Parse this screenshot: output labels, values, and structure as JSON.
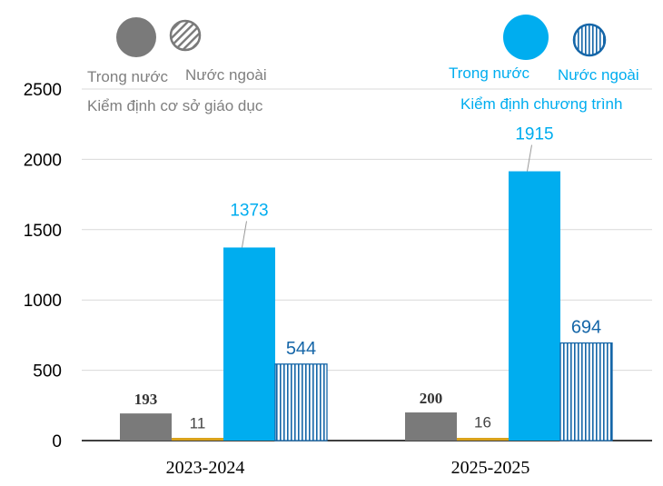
{
  "colors": {
    "domestic_school": "#7a7a7a",
    "foreign_school": "#d9a21b",
    "domestic_program": "#00adef",
    "foreign_program": "#1566a8",
    "legend_gray_text": "#7f7f7f",
    "grid": "#d9d9d9",
    "axis_text": "#000000"
  },
  "legend": {
    "left": {
      "domestic_label": "Trong nước",
      "foreign_label": "Nước ngoài",
      "group_label": "Kiểm định cơ sở giáo dục",
      "domestic_icon": "filled-circle-icon",
      "foreign_icon": "hatched-circle-icon"
    },
    "right": {
      "domestic_label": "Trong nước",
      "foreign_label": "Nước ngoài",
      "group_label": "Kiểm định chương trình",
      "domestic_icon": "filled-circle-icon",
      "foreign_icon": "striped-circle-icon"
    }
  },
  "chart_data": {
    "type": "bar",
    "categories": [
      "2023-2024",
      "2025-2025"
    ],
    "series": [
      {
        "name": "Kiểm định cơ sở giáo dục - Trong nước",
        "values": [
          193,
          200
        ],
        "labels": [
          "193",
          "200"
        ]
      },
      {
        "name": "Kiểm định cơ sở giáo dục - Nước ngoài",
        "values": [
          11,
          16
        ],
        "labels": [
          "11",
          "16"
        ]
      },
      {
        "name": "Kiểm định chương trình - Trong nước",
        "values": [
          1373,
          1915
        ],
        "labels": [
          "1373",
          "1915"
        ]
      },
      {
        "name": "Kiểm định chương trình - Nước ngoài",
        "values": [
          544,
          694
        ],
        "labels": [
          "544",
          "694"
        ]
      }
    ],
    "ylim": [
      0,
      2500
    ],
    "yticks": [
      "0",
      "500",
      "1000",
      "1500",
      "2000",
      "2500"
    ],
    "grid": true,
    "xlabel": "",
    "ylabel": ""
  }
}
